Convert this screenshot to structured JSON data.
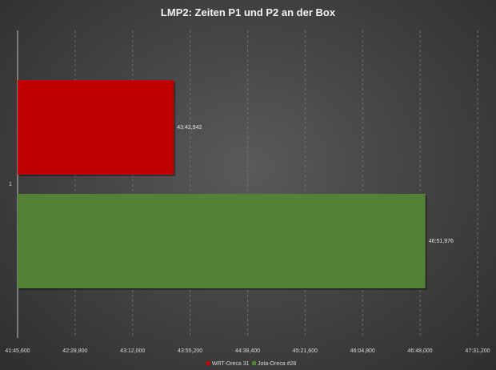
{
  "chart_data": {
    "type": "bar",
    "orientation": "horizontal",
    "title": "LMP2: Zeiten P1 und P2 an der Box",
    "categories": [
      "1"
    ],
    "series": [
      {
        "name": "WRT-Oreca 31",
        "values": [
          "43:42,942"
        ],
        "seconds": [
          2622.942
        ],
        "color": "#c00000"
      },
      {
        "name": "Jota-Oreca #28",
        "values": [
          "46:51,976"
        ],
        "seconds": [
          2811.976
        ],
        "color": "#548235"
      }
    ],
    "x_ticks": [
      "41:45,600",
      "42:28,800",
      "43:12,000",
      "43:55,200",
      "44:38,400",
      "45:21,600",
      "46:04,800",
      "46:48,000",
      "47:31,200"
    ],
    "xlim_seconds": [
      2505.6,
      2851.2
    ],
    "grid": "vertical",
    "legend_position": "bottom"
  }
}
